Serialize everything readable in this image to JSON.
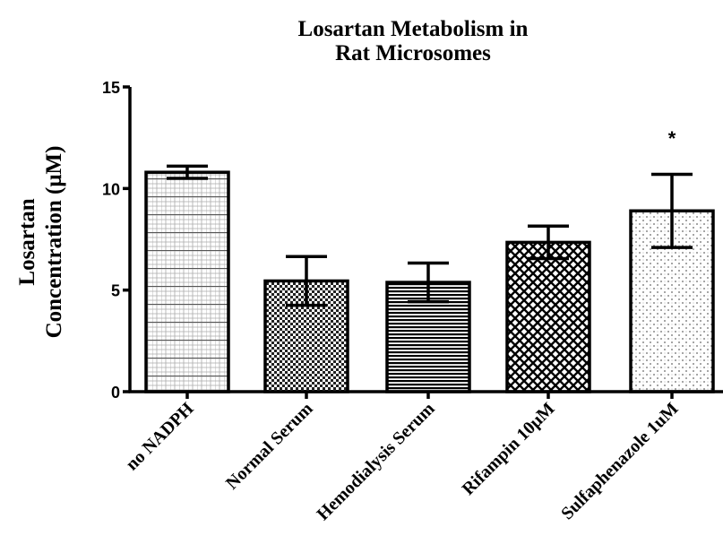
{
  "chart_data": {
    "type": "bar",
    "title": [
      "Losartan Metabolism in",
      "Rat Microsomes"
    ],
    "ylabel": [
      "Losartan",
      "Concentration (μM)"
    ],
    "xlabel": "",
    "ylim": [
      0,
      15
    ],
    "yticks": [
      0,
      5,
      10,
      15
    ],
    "grid": false,
    "categories": [
      "no NADPH",
      "Normal Serum",
      "Hemodialysis Serum",
      "Rifampin 10μM",
      "Sulfaphenazole 1uM"
    ],
    "values": [
      10.8,
      5.45,
      5.38,
      7.35,
      8.9
    ],
    "errors": [
      0.3,
      1.2,
      0.95,
      0.8,
      1.8
    ],
    "patterns": [
      "fine-grid",
      "dots",
      "horizontal-lines",
      "crosshatch",
      "stipple"
    ],
    "annotations": [
      {
        "category": "Sulfaphenazole 1uM",
        "text": "*"
      }
    ]
  }
}
